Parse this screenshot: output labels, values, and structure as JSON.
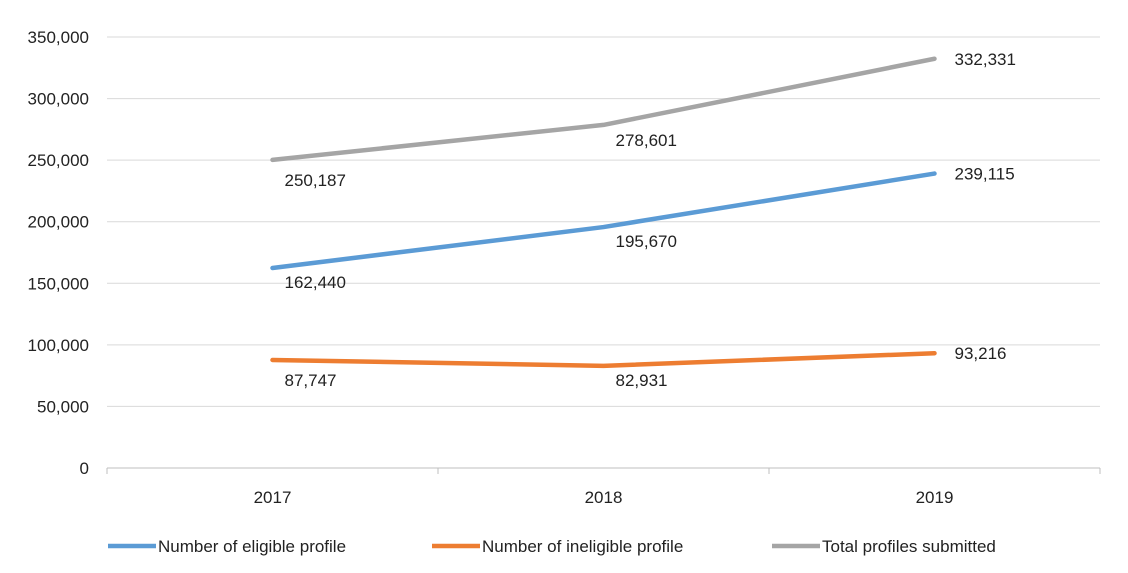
{
  "chart_data": {
    "type": "line",
    "title": "",
    "xlabel": "",
    "ylabel": "",
    "categories": [
      "2017",
      "2018",
      "2019"
    ],
    "ylim": [
      0,
      350000
    ],
    "yticks": [
      0,
      50000,
      100000,
      150000,
      200000,
      250000,
      300000,
      350000
    ],
    "ytick_labels": [
      "0",
      "50,000",
      "100,000",
      "150,000",
      "200,000",
      "250,000",
      "300,000",
      "350,000"
    ],
    "grid": true,
    "legend_position": "bottom",
    "series": [
      {
        "name": "Number of eligible profile",
        "color": "#5b9bd5",
        "values": [
          162440,
          195670,
          239115
        ],
        "labels": [
          "162,440",
          "195,670",
          "239,115"
        ]
      },
      {
        "name": "Number of ineligible profile",
        "color": "#ed7d31",
        "values": [
          87747,
          82931,
          93216
        ],
        "labels": [
          "87,747",
          "82,931",
          "93,216"
        ]
      },
      {
        "name": "Total profiles submitted",
        "color": "#a5a5a5",
        "values": [
          250187,
          278601,
          332331
        ],
        "labels": [
          "250,187",
          "278,601",
          "332,331"
        ]
      }
    ]
  }
}
